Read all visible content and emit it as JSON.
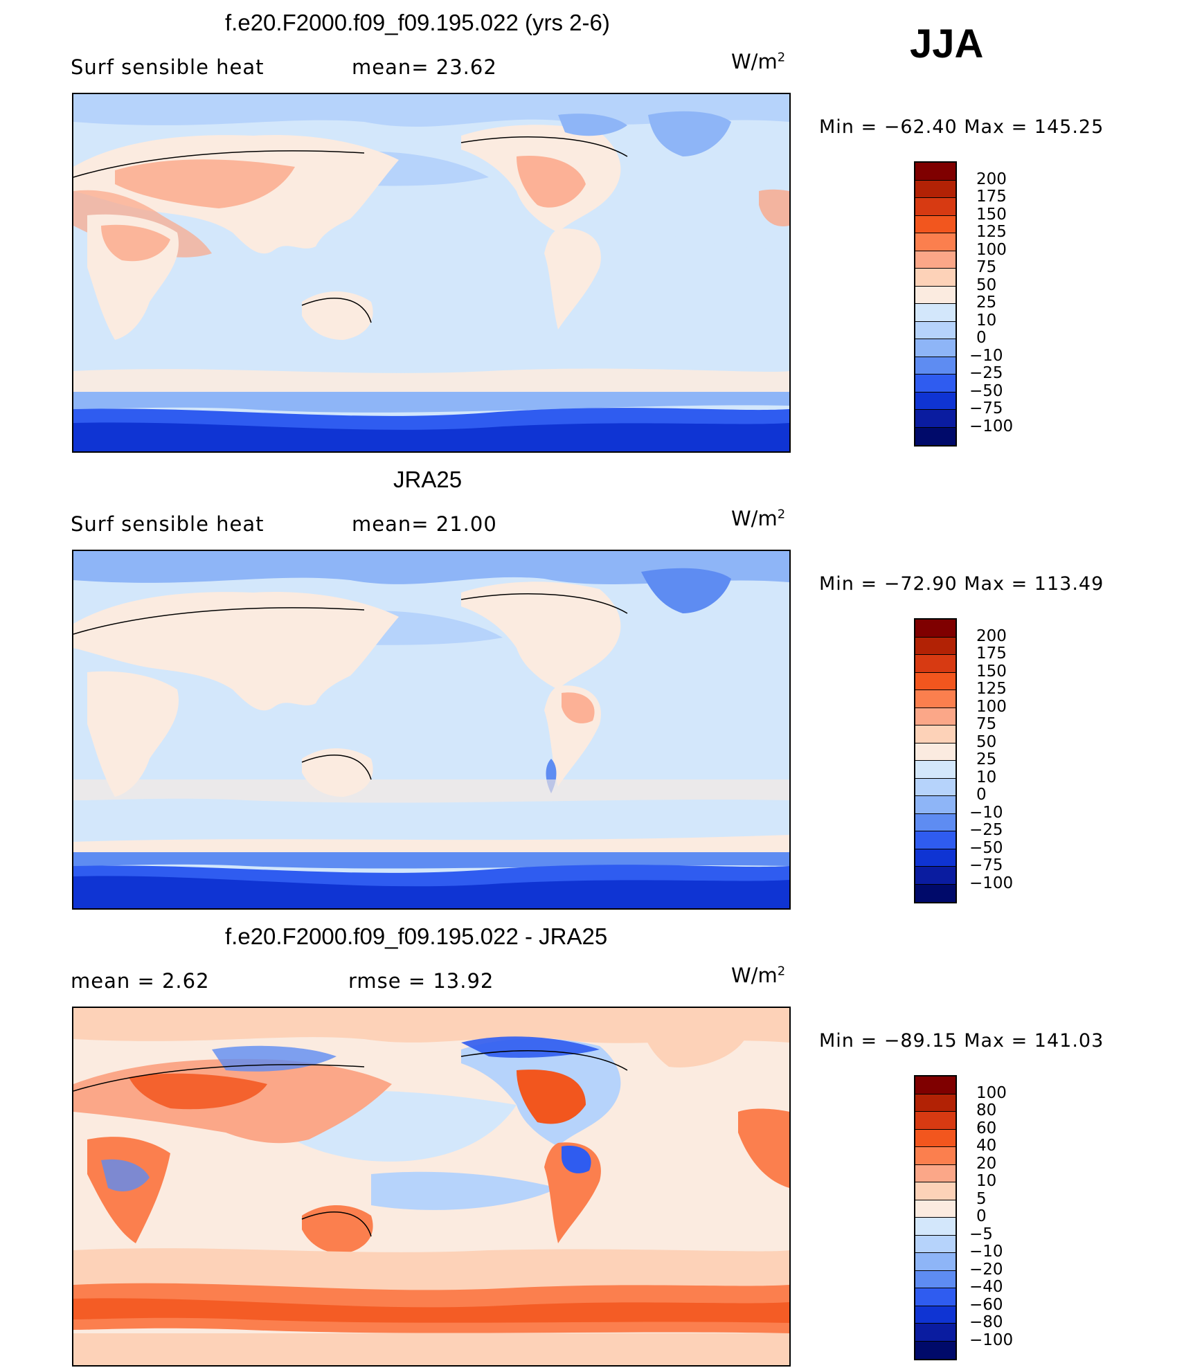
{
  "season": "JJA",
  "units_base": "W/m",
  "units_exp": "2",
  "panels": [
    {
      "title": "f.e20.F2000.f09_f09.195.022 (yrs 2-6)",
      "left_label": "Surf  sensible heat",
      "mid_label": "mean=   23.62",
      "minmax": "Min  =  −62.40  Max  =  145.25",
      "colorbar_levels": [
        "200",
        "175",
        "150",
        "125",
        "100",
        "75",
        "50",
        "25",
        "10",
        "0",
        "−10",
        "−25",
        "−50",
        "−75",
        "−100"
      ],
      "colorbar_colors": [
        "#7f0000",
        "#b22205",
        "#d73a12",
        "#f2561e",
        "#fb7f4e",
        "#fba788",
        "#fdd2b8",
        "#fbebe0",
        "#d3e7fb",
        "#b6d3fb",
        "#8eb5f7",
        "#5e8cf2",
        "#2f5cf0",
        "#0f34d3",
        "#0a1ca0",
        "#000a6a"
      ]
    },
    {
      "title": "JRA25",
      "left_label": "Surf  sensible heat",
      "mid_label": "mean=   21.00",
      "minmax": "Min  =  −72.90  Max  =  113.49",
      "colorbar_levels": [
        "200",
        "175",
        "150",
        "125",
        "100",
        "75",
        "50",
        "25",
        "10",
        "0",
        "−10",
        "−25",
        "−50",
        "−75",
        "−100"
      ],
      "colorbar_colors": [
        "#7f0000",
        "#b22205",
        "#d73a12",
        "#f2561e",
        "#fb7f4e",
        "#fba788",
        "#fdd2b8",
        "#fbebe0",
        "#d3e7fb",
        "#b6d3fb",
        "#8eb5f7",
        "#5e8cf2",
        "#2f5cf0",
        "#0f34d3",
        "#0a1ca0",
        "#000a6a"
      ]
    },
    {
      "title": "f.e20.F2000.f09_f09.195.022 - JRA25",
      "left_label": "mean  =      2.62",
      "mid_label": "rmse  =      13.92",
      "minmax": "Min  =  −89.15  Max  =  141.03",
      "colorbar_levels": [
        "100",
        "80",
        "60",
        "40",
        "20",
        "10",
        "5",
        "0",
        "−5",
        "−10",
        "−20",
        "−40",
        "−60",
        "−80",
        "−100"
      ],
      "colorbar_colors": [
        "#7f0000",
        "#b22205",
        "#d73a12",
        "#f2561e",
        "#fb7f4e",
        "#fba788",
        "#fdd2b8",
        "#fbebe0",
        "#d3e7fb",
        "#b6d3fb",
        "#8eb5f7",
        "#5e8cf2",
        "#2f5cf0",
        "#0f34d3",
        "#0a1ca0",
        "#000a6a"
      ]
    }
  ]
}
